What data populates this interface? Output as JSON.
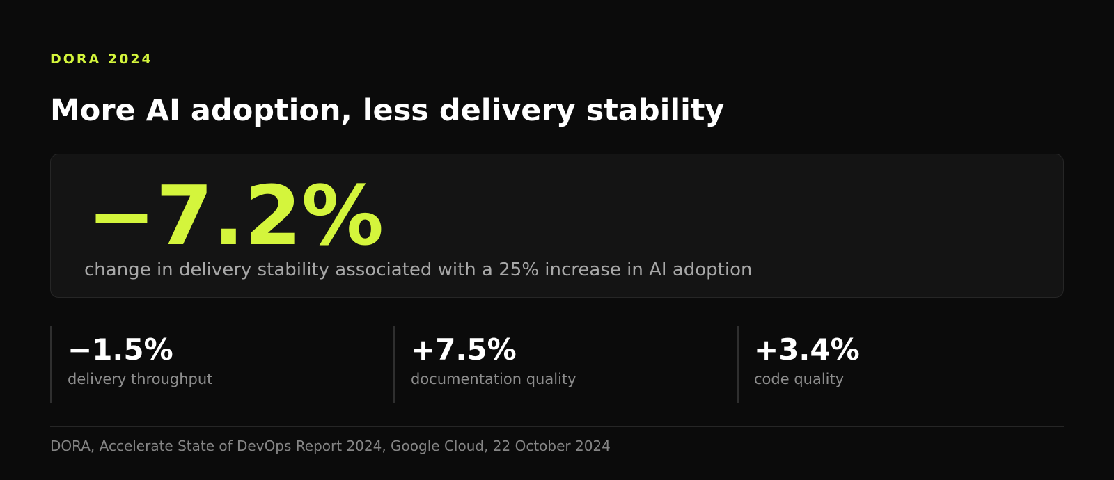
{
  "eyebrow": "DORA 2024",
  "title": "More AI adoption, less delivery stability",
  "hero": {
    "value": "−7.2%",
    "caption": "change in delivery stability associated with a 25% increase in AI adoption"
  },
  "stats": [
    {
      "value": "−1.5%",
      "label": "delivery throughput"
    },
    {
      "value": "+7.5%",
      "label": "documentation quality"
    },
    {
      "value": "+3.4%",
      "label": "code quality"
    }
  ],
  "source": "DORA, Accelerate State of DevOps Report 2024, Google Cloud, 22 October 2024",
  "colors": {
    "background": "#0b0b0b",
    "accent": "#d4f53c",
    "card": "#141414",
    "text": "#ffffff",
    "muted": "#a8a8a8"
  }
}
